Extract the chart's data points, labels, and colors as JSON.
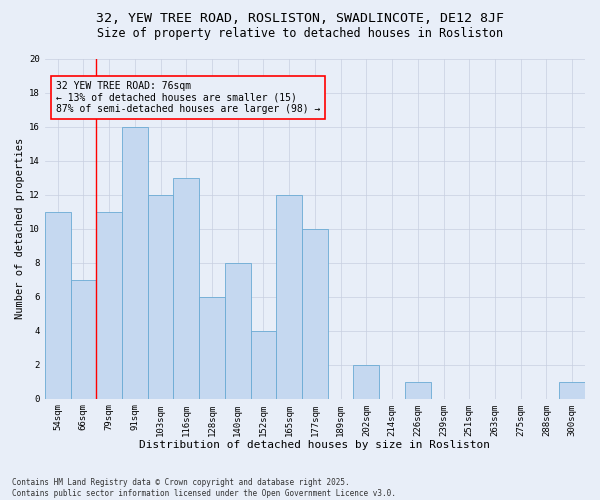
{
  "title1": "32, YEW TREE ROAD, ROSLISTON, SWADLINCOTE, DE12 8JF",
  "title2": "Size of property relative to detached houses in Rosliston",
  "xlabel": "Distribution of detached houses by size in Rosliston",
  "ylabel": "Number of detached properties",
  "categories": [
    "54sqm",
    "66sqm",
    "79sqm",
    "91sqm",
    "103sqm",
    "116sqm",
    "128sqm",
    "140sqm",
    "152sqm",
    "165sqm",
    "177sqm",
    "189sqm",
    "202sqm",
    "214sqm",
    "226sqm",
    "239sqm",
    "251sqm",
    "263sqm",
    "275sqm",
    "288sqm",
    "300sqm"
  ],
  "values": [
    11,
    7,
    11,
    16,
    12,
    13,
    6,
    8,
    4,
    12,
    10,
    0,
    2,
    0,
    1,
    0,
    0,
    0,
    0,
    0,
    1
  ],
  "bar_color": "#c5d8f0",
  "bar_edge_color": "#6aaad4",
  "background_color": "#e8eef8",
  "grid_color": "#c8cfe0",
  "annotation_line1": "32 YEW TREE ROAD: 76sqm",
  "annotation_line2": "← 13% of detached houses are smaller (15)",
  "annotation_line3": "87% of semi-detached houses are larger (98) →",
  "redline_x": 1.5,
  "ylim": [
    0,
    20
  ],
  "yticks": [
    0,
    2,
    4,
    6,
    8,
    10,
    12,
    14,
    16,
    18,
    20
  ],
  "footer1": "Contains HM Land Registry data © Crown copyright and database right 2025.",
  "footer2": "Contains public sector information licensed under the Open Government Licence v3.0.",
  "title1_fontsize": 9.5,
  "title2_fontsize": 8.5,
  "xlabel_fontsize": 8,
  "ylabel_fontsize": 7.5,
  "tick_fontsize": 6.5,
  "annotation_fontsize": 7,
  "footer_fontsize": 5.5
}
